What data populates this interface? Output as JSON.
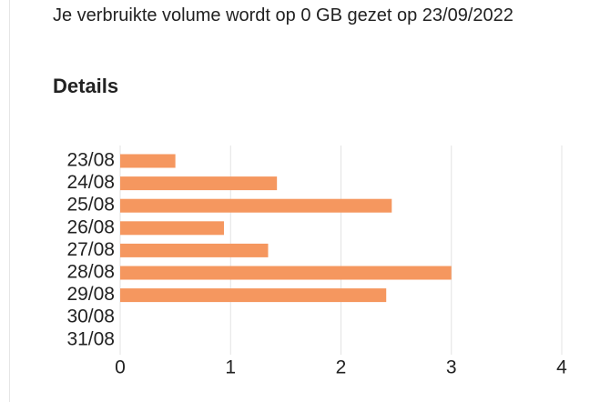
{
  "notice": "Je verbruikte volume wordt op 0 GB gezet op 23/09/2022",
  "chart_data": {
    "type": "bar",
    "orientation": "horizontal",
    "title": "Details",
    "categories": [
      "23/08",
      "24/08",
      "25/08",
      "26/08",
      "27/08",
      "28/08",
      "29/08",
      "30/08",
      "31/08"
    ],
    "values": [
      0.5,
      1.42,
      2.46,
      0.94,
      1.34,
      3.0,
      2.41,
      null,
      null
    ],
    "color": "#f5975f",
    "xlim": [
      0,
      4
    ],
    "xticks": [
      0,
      1,
      2,
      3,
      4
    ],
    "grid": true
  }
}
